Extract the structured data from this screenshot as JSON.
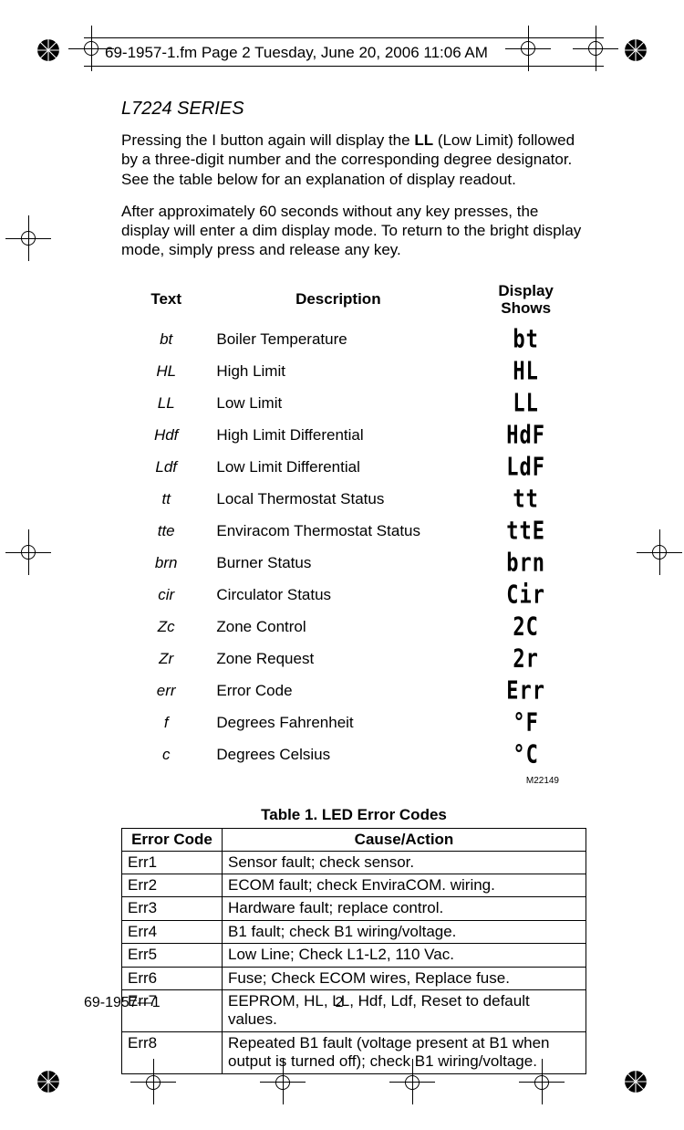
{
  "header_text": "69-1957-1.fm  Page 2  Tuesday, June 20, 2006  11:06 AM",
  "series_title": "L7224 SERIES",
  "para1_pre": "Pressing the I button again will display the ",
  "para1_bold": "LL",
  "para1_post": " (Low Limit) followed by a three-digit number and the corresponding degree designator. See the table below for an explanation of display readout.",
  "para2": "After approximately 60 seconds without any key presses, the display will enter a dim display mode. To return to the bright display mode, simply press and release any key.",
  "codes_headers": {
    "text": "Text",
    "description": "Description",
    "display_shows": "Display Shows"
  },
  "codes": [
    {
      "t": "bt",
      "d": "Boiler Temperature",
      "s": "bt"
    },
    {
      "t": "HL",
      "d": "High Limit",
      "s": "HL"
    },
    {
      "t": "LL",
      "d": "Low Limit",
      "s": "LL"
    },
    {
      "t": "Hdf",
      "d": "High Limit Differential",
      "s": "HdF"
    },
    {
      "t": "Ldf",
      "d": "Low Limit Differential",
      "s": "LdF"
    },
    {
      "t": "tt",
      "d": "Local Thermostat Status",
      "s": "tt"
    },
    {
      "t": "tte",
      "d": "Enviracom Thermostat Status",
      "s": "ttE"
    },
    {
      "t": "brn",
      "d": "Burner Status",
      "s": "brn"
    },
    {
      "t": "cir",
      "d": "Circulator Status",
      "s": "Cir"
    },
    {
      "t": "Zc",
      "d": "Zone Control",
      "s": "2C"
    },
    {
      "t": "Zr",
      "d": "Zone Request",
      "s": "2r"
    },
    {
      "t": "err",
      "d": "Error Code",
      "s": "Err"
    },
    {
      "t": "f",
      "d": "Degrees Fahrenheit",
      "s": "°F"
    },
    {
      "t": "c",
      "d": "Degrees Celsius",
      "s": "°C"
    }
  ],
  "mref": "M22149",
  "table1_caption": "Table 1. LED Error Codes",
  "err_headers": {
    "code": "Error Code",
    "cause": "Cause/Action"
  },
  "errors": [
    {
      "code": "Err1",
      "cause": "Sensor fault; check sensor."
    },
    {
      "code": "Err2",
      "cause": "ECOM fault; check EnviraCOM. wiring."
    },
    {
      "code": "Err3",
      "cause": "Hardware fault; replace control."
    },
    {
      "code": "Err4",
      "cause": "B1 fault; check B1 wiring/voltage."
    },
    {
      "code": "Err5",
      "cause": "Low Line; Check L1-L2, 110 Vac."
    },
    {
      "code": "Err6",
      "cause": "Fuse; Check ECOM wires, Replace fuse."
    },
    {
      "code": "Err7",
      "cause": "EEPROM, HL, LL, Hdf, Ldf, Reset to default values."
    },
    {
      "code": "Err8",
      "cause": "Repeated B1 fault (voltage present at B1 when output is turned off); check B1 wiring/voltage."
    }
  ],
  "footer_doc": "69-1957—1",
  "footer_page": "2",
  "colors": {
    "text": "#000000",
    "bg": "#ffffff",
    "border": "#000000"
  }
}
